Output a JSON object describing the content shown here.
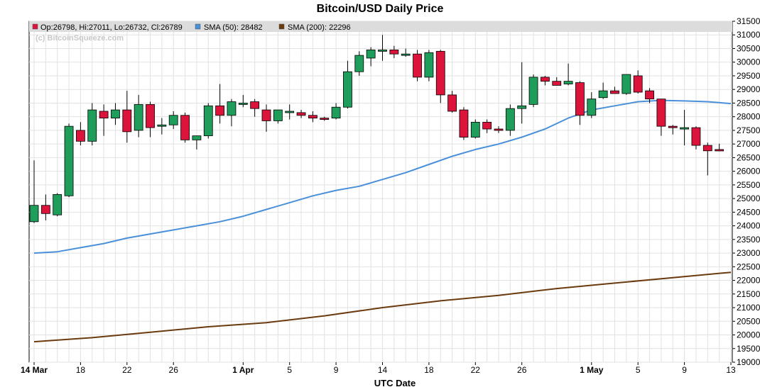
{
  "chart_data": {
    "type": "candlestick",
    "title": "Bitcoin/USD Daily Price",
    "xlabel": "UTC Date",
    "ylabel": "",
    "ylim": [
      19000,
      31500
    ],
    "y_tick_step": 500,
    "x_tick_labels": [
      {
        "day": 0,
        "label": "14 Mar",
        "bold": true
      },
      {
        "day": 4,
        "label": "18",
        "bold": false
      },
      {
        "day": 8,
        "label": "22",
        "bold": false
      },
      {
        "day": 12,
        "label": "26",
        "bold": false
      },
      {
        "day": 18,
        "label": "1 Apr",
        "bold": true
      },
      {
        "day": 22,
        "label": "5",
        "bold": false
      },
      {
        "day": 26,
        "label": "9",
        "bold": false
      },
      {
        "day": 30,
        "label": "14",
        "bold": false
      },
      {
        "day": 34,
        "label": "18",
        "bold": false
      },
      {
        "day": 38,
        "label": "22",
        "bold": false
      },
      {
        "day": 42,
        "label": "26",
        "bold": false
      },
      {
        "day": 48,
        "label": "1 May",
        "bold": true
      },
      {
        "day": 52,
        "label": "5",
        "bold": false
      },
      {
        "day": 56,
        "label": "9",
        "bold": false
      },
      {
        "day": 60,
        "label": "13",
        "bold": false
      }
    ],
    "legend": {
      "position": "top",
      "ohlc_text": "Op:26798, Hi:27011, Lo:26732, Cl:26789",
      "sma50_text": "SMA (50): 28482",
      "sma200_text": "SMA (200): 22296"
    },
    "watermark": "(c) BitcoinSqueeze.com",
    "grid": true,
    "colors": {
      "up": "#1e9e5a",
      "down": "#dc143c",
      "sma50": "#4a90d9",
      "sma200": "#6b3a0e",
      "grid": "#e2e2e2",
      "legend_bg": "#dcdcdc"
    },
    "candles": [
      {
        "d": 0,
        "o": 24150,
        "h": 26400,
        "l": 24100,
        "c": 24750
      },
      {
        "d": 1,
        "o": 24750,
        "h": 25150,
        "l": 24200,
        "c": 24450
      },
      {
        "d": 2,
        "o": 24400,
        "h": 25200,
        "l": 24350,
        "c": 25150
      },
      {
        "d": 3,
        "o": 25100,
        "h": 27750,
        "l": 25050,
        "c": 27650
      },
      {
        "d": 4,
        "o": 27500,
        "h": 27800,
        "l": 26950,
        "c": 27100
      },
      {
        "d": 5,
        "o": 27100,
        "h": 28500,
        "l": 26950,
        "c": 28250
      },
      {
        "d": 6,
        "o": 28200,
        "h": 28450,
        "l": 27300,
        "c": 27950
      },
      {
        "d": 7,
        "o": 27950,
        "h": 28500,
        "l": 27700,
        "c": 28250
      },
      {
        "d": 8,
        "o": 28250,
        "h": 28950,
        "l": 27050,
        "c": 27450
      },
      {
        "d": 9,
        "o": 27500,
        "h": 28800,
        "l": 27250,
        "c": 28450
      },
      {
        "d": 10,
        "o": 28450,
        "h": 28550,
        "l": 27250,
        "c": 27600
      },
      {
        "d": 11,
        "o": 27650,
        "h": 27950,
        "l": 27350,
        "c": 27700
      },
      {
        "d": 12,
        "o": 27700,
        "h": 28200,
        "l": 27550,
        "c": 28050
      },
      {
        "d": 13,
        "o": 28050,
        "h": 28150,
        "l": 27050,
        "c": 27150
      },
      {
        "d": 14,
        "o": 27150,
        "h": 27300,
        "l": 26800,
        "c": 27300
      },
      {
        "d": 15,
        "o": 27300,
        "h": 28500,
        "l": 27200,
        "c": 28400
      },
      {
        "d": 16,
        "o": 28400,
        "h": 29200,
        "l": 27750,
        "c": 28050
      },
      {
        "d": 17,
        "o": 28050,
        "h": 28650,
        "l": 27650,
        "c": 28550
      },
      {
        "d": 18,
        "o": 28500,
        "h": 28800,
        "l": 28350,
        "c": 28500
      },
      {
        "d": 19,
        "o": 28550,
        "h": 28650,
        "l": 28000,
        "c": 28300
      },
      {
        "d": 20,
        "o": 28250,
        "h": 28450,
        "l": 27450,
        "c": 27850
      },
      {
        "d": 21,
        "o": 27850,
        "h": 28250,
        "l": 27750,
        "c": 28250
      },
      {
        "d": 22,
        "o": 28200,
        "h": 28450,
        "l": 27900,
        "c": 28200
      },
      {
        "d": 23,
        "o": 28150,
        "h": 28250,
        "l": 27950,
        "c": 28050
      },
      {
        "d": 24,
        "o": 28050,
        "h": 28200,
        "l": 27800,
        "c": 27950
      },
      {
        "d": 25,
        "o": 27950,
        "h": 28000,
        "l": 27850,
        "c": 27900
      },
      {
        "d": 26,
        "o": 27950,
        "h": 28500,
        "l": 27900,
        "c": 28350
      },
      {
        "d": 27,
        "o": 28350,
        "h": 30050,
        "l": 28300,
        "c": 29650
      },
      {
        "d": 28,
        "o": 29650,
        "h": 30400,
        "l": 29500,
        "c": 30250
      },
      {
        "d": 29,
        "o": 30150,
        "h": 30550,
        "l": 29850,
        "c": 30450
      },
      {
        "d": 30,
        "o": 30450,
        "h": 31000,
        "l": 30050,
        "c": 30450
      },
      {
        "d": 31,
        "o": 30450,
        "h": 30600,
        "l": 30150,
        "c": 30300
      },
      {
        "d": 32,
        "o": 30300,
        "h": 30500,
        "l": 30200,
        "c": 30300
      },
      {
        "d": 33,
        "o": 30300,
        "h": 30450,
        "l": 29300,
        "c": 29450
      },
      {
        "d": 34,
        "o": 29450,
        "h": 30450,
        "l": 29300,
        "c": 30350
      },
      {
        "d": 35,
        "o": 30400,
        "h": 30450,
        "l": 28500,
        "c": 28800
      },
      {
        "d": 36,
        "o": 28800,
        "h": 28950,
        "l": 28150,
        "c": 28200
      },
      {
        "d": 37,
        "o": 28250,
        "h": 28350,
        "l": 27150,
        "c": 27250
      },
      {
        "d": 38,
        "o": 27250,
        "h": 27900,
        "l": 27200,
        "c": 27800
      },
      {
        "d": 39,
        "o": 27800,
        "h": 27900,
        "l": 27400,
        "c": 27550
      },
      {
        "d": 40,
        "o": 27550,
        "h": 27650,
        "l": 27400,
        "c": 27500
      },
      {
        "d": 41,
        "o": 27500,
        "h": 28450,
        "l": 27300,
        "c": 28300
      },
      {
        "d": 42,
        "o": 28300,
        "h": 30000,
        "l": 27750,
        "c": 28400
      },
      {
        "d": 43,
        "o": 28450,
        "h": 29550,
        "l": 28350,
        "c": 29450
      },
      {
        "d": 44,
        "o": 29450,
        "h": 29500,
        "l": 29150,
        "c": 29300
      },
      {
        "d": 45,
        "o": 29300,
        "h": 29450,
        "l": 29150,
        "c": 29150
      },
      {
        "d": 46,
        "o": 29200,
        "h": 29950,
        "l": 29150,
        "c": 29300
      },
      {
        "d": 47,
        "o": 29250,
        "h": 29300,
        "l": 27700,
        "c": 28050
      },
      {
        "d": 48,
        "o": 28050,
        "h": 28900,
        "l": 27950,
        "c": 28650
      },
      {
        "d": 49,
        "o": 28700,
        "h": 29250,
        "l": 28650,
        "c": 28950
      },
      {
        "d": 50,
        "o": 28950,
        "h": 29100,
        "l": 28850,
        "c": 28850
      },
      {
        "d": 51,
        "o": 28850,
        "h": 29550,
        "l": 28800,
        "c": 29550
      },
      {
        "d": 52,
        "o": 29500,
        "h": 29700,
        "l": 28850,
        "c": 28900
      },
      {
        "d": 53,
        "o": 28950,
        "h": 29050,
        "l": 28500,
        "c": 28650
      },
      {
        "d": 54,
        "o": 28650,
        "h": 28650,
        "l": 27300,
        "c": 27650
      },
      {
        "d": 55,
        "o": 27650,
        "h": 27700,
        "l": 27350,
        "c": 27600
      },
      {
        "d": 56,
        "o": 27600,
        "h": 28250,
        "l": 26950,
        "c": 27600
      },
      {
        "d": 57,
        "o": 27600,
        "h": 27650,
        "l": 26800,
        "c": 26950
      },
      {
        "d": 58,
        "o": 26950,
        "h": 27050,
        "l": 25850,
        "c": 26750
      },
      {
        "d": 59,
        "o": 26798,
        "h": 27011,
        "l": 26732,
        "c": 26789
      }
    ],
    "sma50": [
      {
        "d": 0,
        "v": 23000
      },
      {
        "d": 2,
        "v": 23050
      },
      {
        "d": 4,
        "v": 23200
      },
      {
        "d": 6,
        "v": 23350
      },
      {
        "d": 8,
        "v": 23550
      },
      {
        "d": 10,
        "v": 23700
      },
      {
        "d": 12,
        "v": 23850
      },
      {
        "d": 14,
        "v": 24000
      },
      {
        "d": 16,
        "v": 24150
      },
      {
        "d": 18,
        "v": 24350
      },
      {
        "d": 20,
        "v": 24600
      },
      {
        "d": 22,
        "v": 24850
      },
      {
        "d": 24,
        "v": 25100
      },
      {
        "d": 26,
        "v": 25300
      },
      {
        "d": 28,
        "v": 25450
      },
      {
        "d": 30,
        "v": 25700
      },
      {
        "d": 32,
        "v": 25950
      },
      {
        "d": 34,
        "v": 26250
      },
      {
        "d": 36,
        "v": 26550
      },
      {
        "d": 38,
        "v": 26800
      },
      {
        "d": 40,
        "v": 27000
      },
      {
        "d": 42,
        "v": 27250
      },
      {
        "d": 44,
        "v": 27550
      },
      {
        "d": 46,
        "v": 27950
      },
      {
        "d": 48,
        "v": 28250
      },
      {
        "d": 50,
        "v": 28400
      },
      {
        "d": 52,
        "v": 28550
      },
      {
        "d": 54,
        "v": 28600
      },
      {
        "d": 56,
        "v": 28580
      },
      {
        "d": 58,
        "v": 28550
      },
      {
        "d": 60,
        "v": 28482
      }
    ],
    "sma200": [
      {
        "d": 0,
        "v": 19750
      },
      {
        "d": 5,
        "v": 19900
      },
      {
        "d": 10,
        "v": 20100
      },
      {
        "d": 15,
        "v": 20300
      },
      {
        "d": 20,
        "v": 20450
      },
      {
        "d": 25,
        "v": 20700
      },
      {
        "d": 30,
        "v": 21000
      },
      {
        "d": 35,
        "v": 21250
      },
      {
        "d": 40,
        "v": 21450
      },
      {
        "d": 45,
        "v": 21700
      },
      {
        "d": 50,
        "v": 21900
      },
      {
        "d": 55,
        "v": 22100
      },
      {
        "d": 60,
        "v": 22296
      }
    ]
  }
}
